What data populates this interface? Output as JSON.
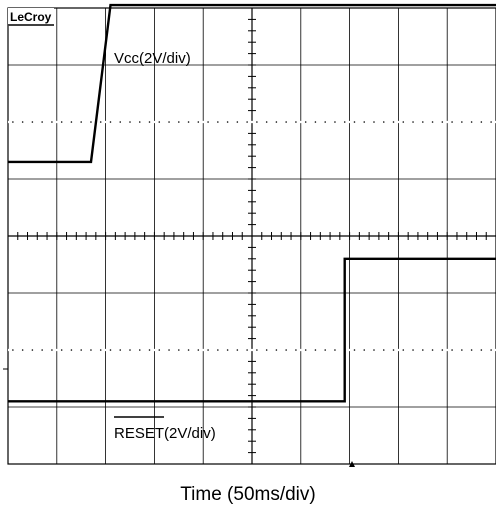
{
  "brand": "LeCroy",
  "x_caption": "Time (50ms/div)",
  "chart_data": {
    "type": "line",
    "grid": true,
    "xdivisions": 10,
    "ydivisions": 8,
    "series": [
      {
        "name": "Vcc(2V/div)",
        "x": [
          0,
          1.7,
          2.1,
          10
        ],
        "y": [
          5.3,
          5.3,
          8.05,
          8.05
        ]
      },
      {
        "name": "RESET(2V/div)",
        "x": [
          0,
          6.9,
          6.9,
          10
        ],
        "y": [
          1.1,
          1.1,
          3.6,
          3.6
        ]
      }
    ],
    "labels": {
      "vcc": "Vcc(2V/div)",
      "reset": "RESET(2V/div)"
    }
  }
}
